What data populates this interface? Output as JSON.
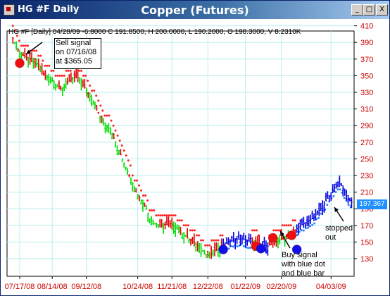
{
  "window": {
    "left_title": "HG #F Daily",
    "center_title": "Copper (Futures)",
    "controls": [
      "_",
      "□",
      "X"
    ]
  },
  "info_line": "HG #F [Daily] 04/28/09 -6.8000 C 191.8500, H 200.0000, L 190.2000, O 198.3000, V 8.2310K",
  "annotations": {
    "sell": [
      "Sell signal",
      "on 07/16/08",
      "at $365.05"
    ],
    "buy": [
      "Buy signal",
      "with blue dot",
      "and blue bar"
    ],
    "stopped": [
      "stopped",
      "out"
    ]
  },
  "current_price_label": "197.367",
  "colors": {
    "down_bar": "#e00000",
    "up_bar": "#00dd00",
    "signal_bar": "#0000dd",
    "sell_stop_dots": "#ff2020",
    "buy_stop_dots": "#2a7fff",
    "grid": "#b8eeee",
    "axis_text": "#cc0000"
  },
  "chart_data": {
    "type": "ohlc",
    "y_axis": {
      "ticks": [
        130,
        150,
        170,
        190,
        210,
        230,
        250,
        270,
        290,
        310,
        330,
        350,
        370,
        390,
        410
      ],
      "ylim": [
        120,
        416
      ],
      "position": "right"
    },
    "x_tick_labels": [
      "07/17/08",
      "08/14/08",
      "09/12/08",
      "10/24/08",
      "11/21/08",
      "12/22/08",
      "01/22/09",
      "02/20/09",
      "04/03/09"
    ],
    "x_tick_days": [
      0,
      19,
      39,
      69,
      89,
      110,
      132,
      153,
      182
    ],
    "x_range_days": [
      -4,
      194
    ],
    "close_path": [
      [
        -4,
        395
      ],
      [
        -2,
        385
      ],
      [
        0,
        377
      ],
      [
        4,
        372
      ],
      [
        8,
        366
      ],
      [
        11,
        363
      ],
      [
        14,
        352
      ],
      [
        17,
        347
      ],
      [
        20,
        342
      ],
      [
        23,
        335
      ],
      [
        25,
        335
      ],
      [
        27,
        340
      ],
      [
        30,
        346
      ],
      [
        33,
        350
      ],
      [
        35,
        345
      ],
      [
        38,
        336
      ],
      [
        41,
        325
      ],
      [
        44,
        315
      ],
      [
        47,
        300
      ],
      [
        50,
        290
      ],
      [
        53,
        285
      ],
      [
        56,
        270
      ],
      [
        59,
        255
      ],
      [
        62,
        240
      ],
      [
        65,
        225
      ],
      [
        68,
        210
      ],
      [
        71,
        200
      ],
      [
        74,
        190
      ],
      [
        76,
        178
      ],
      [
        79,
        172
      ],
      [
        82,
        170
      ],
      [
        85,
        171
      ],
      [
        88,
        172
      ],
      [
        91,
        168
      ],
      [
        94,
        162
      ],
      [
        97,
        157
      ],
      [
        100,
        152
      ],
      [
        103,
        147
      ],
      [
        106,
        142
      ],
      [
        108,
        136
      ],
      [
        110,
        134
      ],
      [
        112,
        136
      ],
      [
        114,
        140
      ],
      [
        116,
        142
      ],
      [
        118,
        146
      ],
      [
        121,
        150
      ],
      [
        124,
        152
      ],
      [
        127,
        153
      ],
      [
        130,
        154
      ],
      [
        133,
        152
      ],
      [
        136,
        150
      ],
      [
        139,
        148
      ],
      [
        142,
        146
      ],
      [
        145,
        145
      ],
      [
        148,
        148
      ],
      [
        151,
        152
      ],
      [
        154,
        155
      ],
      [
        157,
        158
      ],
      [
        160,
        162
      ],
      [
        163,
        168
      ],
      [
        166,
        172
      ],
      [
        169,
        176
      ],
      [
        172,
        180
      ],
      [
        175,
        188
      ],
      [
        178,
        196
      ],
      [
        181,
        206
      ],
      [
        184,
        215
      ],
      [
        186,
        222
      ],
      [
        188,
        218
      ],
      [
        190,
        210
      ],
      [
        192,
        202
      ],
      [
        194,
        198
      ]
    ],
    "signals": [
      {
        "type": "sell",
        "day": 0,
        "price": 365.05
      },
      {
        "type": "sell",
        "day": 138,
        "price": 145
      },
      {
        "type": "sell",
        "day": 148,
        "price": 155
      },
      {
        "type": "sell",
        "day": 159,
        "price": 158
      },
      {
        "type": "buy",
        "day": 119,
        "price": 141
      },
      {
        "type": "buy",
        "day": 141,
        "price": 142
      },
      {
        "type": "buy",
        "day": 162,
        "price": 141
      }
    ]
  }
}
